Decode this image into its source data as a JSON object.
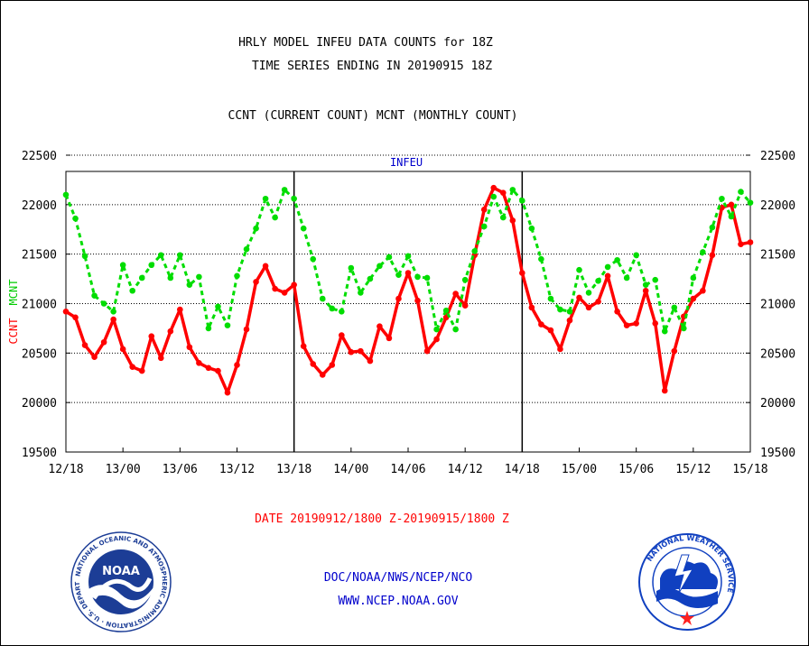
{
  "title_line1": "HRLY MODEL INFEU DATA COUNTS for 18Z",
  "title_line2": "TIME SERIES ENDING IN 20190915 18Z",
  "title_line3": "CCNT (CURRENT COUNT) MCNT (MONTHLY COUNT)",
  "date_range": "DATE 20190912/1800 Z-20190915/1800 Z",
  "footer_line1": "DOC/NOAA/NWS/NCEP/NCO",
  "footer_line2": "WWW.NCEP.NOAA.GOV",
  "noaa_logo": {
    "label": "NOAA",
    "ring_text": "NATIONAL OCEANIC AND ATMOSPHERIC ADMINISTRATION · U.S. DEPARTMENT OF COMMERCE"
  },
  "nws_logo": {
    "ring_text": "NATIONAL WEATHER SERVICE"
  },
  "colors": {
    "ccnt": "#ff0000",
    "mcnt": "#00dd00",
    "text_red": "#ff0000",
    "text_blue": "#0000cc",
    "noaa_blue": "#1c3d96",
    "nws_blue": "#1040c0"
  },
  "chart_data": {
    "type": "line",
    "subtitle": "INFEU",
    "ylabel_left_ccnt": "CCNT",
    "ylabel_left_mcnt": "MCNT",
    "ylim": [
      19500,
      22500
    ],
    "yticks": [
      19500,
      20000,
      20500,
      21000,
      21500,
      22000,
      22500
    ],
    "ytick_labels": [
      "19500",
      "20000",
      "20500",
      "21000",
      "21500",
      "22000",
      "22500"
    ],
    "xlim": [
      0,
      72
    ],
    "xticks": [
      0,
      6,
      12,
      18,
      24,
      30,
      36,
      42,
      48,
      54,
      60,
      66,
      72
    ],
    "xtick_labels": [
      "12/18",
      "13/00",
      "13/06",
      "13/12",
      "13/18",
      "14/00",
      "14/06",
      "14/12",
      "14/18",
      "15/00",
      "15/06",
      "15/12",
      "15/18"
    ],
    "grid": "horizontal",
    "day_separators": [
      24,
      48
    ],
    "series": [
      {
        "name": "CCNT",
        "style": "solid",
        "values": [
          20920,
          20860,
          20580,
          20460,
          20610,
          20840,
          20540,
          20360,
          20320,
          20670,
          20450,
          20720,
          20940,
          20560,
          20400,
          20350,
          20320,
          20100,
          20380,
          20740,
          21220,
          21380,
          21150,
          21110,
          21190,
          20570,
          20390,
          20280,
          20380,
          20680,
          20510,
          20520,
          20420,
          20770,
          20650,
          21050,
          21310,
          21030,
          20520,
          20640,
          20860,
          21100,
          20980,
          21490,
          21950,
          22170,
          22120,
          21840,
          21310,
          20960,
          20790,
          20730,
          20540,
          20830,
          21060,
          20960,
          21020,
          21280,
          20920,
          20780,
          20800,
          21130,
          20800,
          20120,
          20520,
          20870,
          21050,
          21130,
          21490,
          21970,
          22000,
          21600,
          21620
        ]
      },
      {
        "name": "MCNT",
        "style": "dashed",
        "values": [
          22100,
          21860,
          21480,
          21080,
          21000,
          20920,
          21390,
          21130,
          21260,
          21390,
          21490,
          21260,
          21490,
          21190,
          21270,
          20750,
          20970,
          20780,
          21280,
          21550,
          21760,
          22060,
          21870,
          22150,
          22060,
          21760,
          21450,
          21050,
          20950,
          20920,
          21360,
          21110,
          21250,
          21380,
          21470,
          21290,
          21480,
          21270,
          21260,
          20740,
          20930,
          20740,
          21240,
          21530,
          21780,
          22080,
          21870,
          22150,
          22040,
          21760,
          21450,
          21050,
          20940,
          20920,
          21340,
          21110,
          21230,
          21370,
          21440,
          21260,
          21490,
          21190,
          21240,
          20720,
          20960,
          20750,
          21260,
          21520,
          21770,
          22060,
          21880,
          22130,
          22020
        ]
      }
    ]
  }
}
